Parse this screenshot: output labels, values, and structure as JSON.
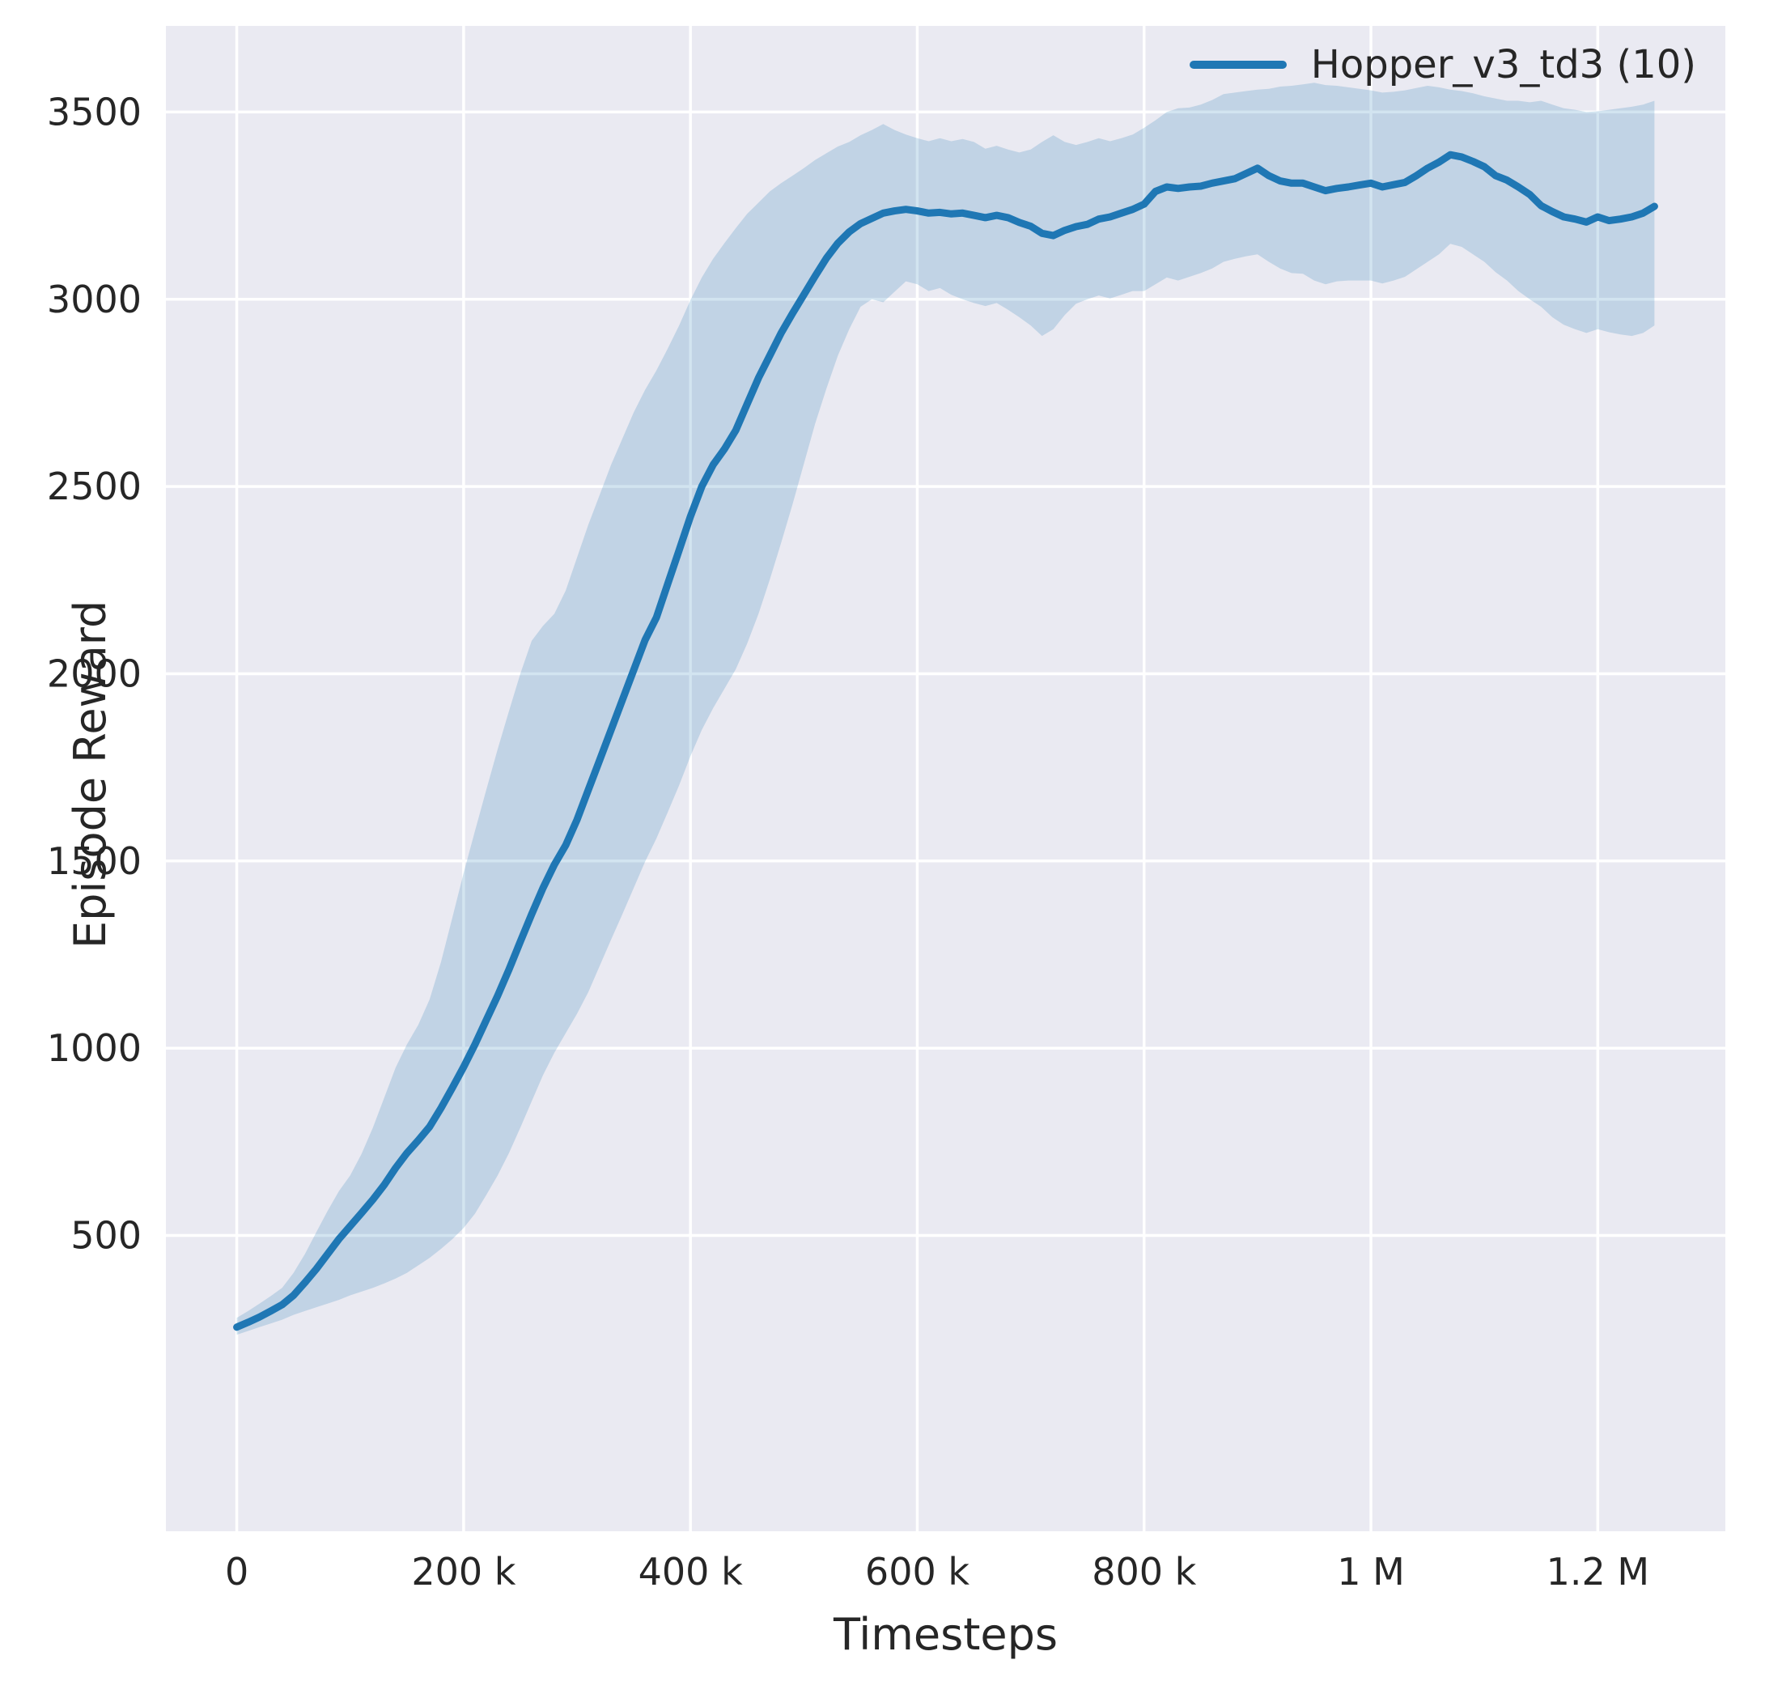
{
  "chart_data": {
    "type": "line",
    "title": "",
    "xlabel": "Timesteps",
    "ylabel": "Episode Reward",
    "legend_position": "upper right",
    "grid": true,
    "xlim": [
      -62500,
      1312500
    ],
    "ylim": [
      -290,
      3730
    ],
    "band_alpha": 0.2,
    "colors": {
      "plot_background": "#eaeaf2",
      "grid": "#ffffff",
      "text": "#262626",
      "line": "#1f77b4"
    },
    "x_ticks": [
      {
        "value": 0,
        "label": "0"
      },
      {
        "value": 200000,
        "label": "200 k"
      },
      {
        "value": 400000,
        "label": "400 k"
      },
      {
        "value": 600000,
        "label": "600 k"
      },
      {
        "value": 800000,
        "label": "800 k"
      },
      {
        "value": 1000000,
        "label": "1 M"
      },
      {
        "value": 1200000,
        "label": "1.2 M"
      }
    ],
    "y_ticks": [
      {
        "value": 500,
        "label": "500"
      },
      {
        "value": 1000,
        "label": "1000"
      },
      {
        "value": 1500,
        "label": "1500"
      },
      {
        "value": 2000,
        "label": "2000"
      },
      {
        "value": 2500,
        "label": "2500"
      },
      {
        "value": 3000,
        "label": "3000"
      },
      {
        "value": 3500,
        "label": "3500"
      }
    ],
    "series": [
      {
        "name": "Hopper_v3_td3 (10)",
        "color": "#1f77b4",
        "points_format": [
          "timesteps",
          "mean_reward",
          "band_lower",
          "band_upper"
        ],
        "points": [
          [
            0,
            255,
            235,
            280
          ],
          [
            10000,
            268,
            245,
            298
          ],
          [
            20000,
            282,
            255,
            318
          ],
          [
            30000,
            298,
            265,
            338
          ],
          [
            40000,
            315,
            275,
            360
          ],
          [
            50000,
            340,
            288,
            400
          ],
          [
            60000,
            374,
            298,
            450
          ],
          [
            70000,
            410,
            308,
            508
          ],
          [
            80000,
            450,
            318,
            565
          ],
          [
            90000,
            490,
            328,
            618
          ],
          [
            100000,
            525,
            340,
            660
          ],
          [
            110000,
            560,
            350,
            718
          ],
          [
            120000,
            596,
            360,
            788
          ],
          [
            130000,
            635,
            372,
            868
          ],
          [
            140000,
            680,
            385,
            948
          ],
          [
            150000,
            720,
            400,
            1010
          ],
          [
            160000,
            754,
            420,
            1062
          ],
          [
            170000,
            790,
            440,
            1130
          ],
          [
            180000,
            840,
            464,
            1230
          ],
          [
            190000,
            894,
            490,
            1348
          ],
          [
            200000,
            950,
            520,
            1468
          ],
          [
            210000,
            1010,
            558,
            1580
          ],
          [
            220000,
            1075,
            608,
            1690
          ],
          [
            230000,
            1140,
            660,
            1798
          ],
          [
            240000,
            1210,
            720,
            1900
          ],
          [
            250000,
            1285,
            788,
            2000
          ],
          [
            260000,
            1358,
            858,
            2088
          ],
          [
            270000,
            1428,
            928,
            2128
          ],
          [
            280000,
            1490,
            988,
            2160
          ],
          [
            290000,
            1542,
            1040,
            2222
          ],
          [
            300000,
            1610,
            1092,
            2310
          ],
          [
            310000,
            1690,
            1150,
            2398
          ],
          [
            320000,
            1770,
            1220,
            2478
          ],
          [
            330000,
            1850,
            1290,
            2558
          ],
          [
            340000,
            1930,
            1358,
            2628
          ],
          [
            350000,
            2010,
            1428,
            2698
          ],
          [
            360000,
            2090,
            1498,
            2758
          ],
          [
            370000,
            2150,
            1560,
            2810
          ],
          [
            380000,
            2240,
            1630,
            2868
          ],
          [
            390000,
            2330,
            1702,
            2930
          ],
          [
            400000,
            2420,
            1780,
            2998
          ],
          [
            410000,
            2500,
            1850,
            3058
          ],
          [
            420000,
            2558,
            1908,
            3108
          ],
          [
            430000,
            2600,
            1960,
            3150
          ],
          [
            440000,
            2650,
            2012,
            3190
          ],
          [
            450000,
            2720,
            2080,
            3228
          ],
          [
            460000,
            2790,
            2160,
            3258
          ],
          [
            470000,
            2850,
            2252,
            3288
          ],
          [
            480000,
            2910,
            2350,
            3310
          ],
          [
            490000,
            2962,
            2452,
            3330
          ],
          [
            500000,
            3012,
            2560,
            3350
          ],
          [
            510000,
            3062,
            2668,
            3372
          ],
          [
            520000,
            3110,
            2762,
            3390
          ],
          [
            530000,
            3150,
            2850,
            3408
          ],
          [
            540000,
            3180,
            2920,
            3420
          ],
          [
            550000,
            3202,
            2980,
            3438
          ],
          [
            560000,
            3216,
            3000,
            3452
          ],
          [
            570000,
            3230,
            2992,
            3468
          ],
          [
            580000,
            3236,
            3020,
            3452
          ],
          [
            590000,
            3240,
            3048,
            3440
          ],
          [
            600000,
            3236,
            3040,
            3430
          ],
          [
            610000,
            3230,
            3022,
            3422
          ],
          [
            620000,
            3232,
            3030,
            3430
          ],
          [
            630000,
            3228,
            3012,
            3422
          ],
          [
            640000,
            3230,
            3000,
            3428
          ],
          [
            650000,
            3224,
            2990,
            3420
          ],
          [
            660000,
            3218,
            2982,
            3402
          ],
          [
            670000,
            3224,
            2990,
            3410
          ],
          [
            680000,
            3218,
            2972,
            3400
          ],
          [
            690000,
            3205,
            2952,
            3392
          ],
          [
            700000,
            3195,
            2930,
            3400
          ],
          [
            710000,
            3176,
            2902,
            3420
          ],
          [
            720000,
            3170,
            2920,
            3438
          ],
          [
            730000,
            3184,
            2958,
            3420
          ],
          [
            740000,
            3194,
            2988,
            3412
          ],
          [
            750000,
            3200,
            3000,
            3420
          ],
          [
            760000,
            3214,
            3010,
            3430
          ],
          [
            770000,
            3220,
            3002,
            3422
          ],
          [
            780000,
            3230,
            3012,
            3430
          ],
          [
            790000,
            3240,
            3022,
            3440
          ],
          [
            800000,
            3254,
            3022,
            3458
          ],
          [
            810000,
            3288,
            3040,
            3478
          ],
          [
            820000,
            3300,
            3058,
            3500
          ],
          [
            830000,
            3296,
            3050,
            3510
          ],
          [
            840000,
            3300,
            3060,
            3512
          ],
          [
            850000,
            3302,
            3070,
            3520
          ],
          [
            860000,
            3310,
            3082,
            3532
          ],
          [
            870000,
            3316,
            3100,
            3548
          ],
          [
            880000,
            3322,
            3108,
            3552
          ],
          [
            890000,
            3336,
            3115,
            3556
          ],
          [
            900000,
            3350,
            3120,
            3560
          ],
          [
            910000,
            3330,
            3100,
            3562
          ],
          [
            920000,
            3316,
            3082,
            3568
          ],
          [
            930000,
            3310,
            3070,
            3570
          ],
          [
            940000,
            3310,
            3068,
            3574
          ],
          [
            950000,
            3300,
            3050,
            3578
          ],
          [
            960000,
            3290,
            3040,
            3572
          ],
          [
            970000,
            3296,
            3048,
            3570
          ],
          [
            980000,
            3300,
            3050,
            3566
          ],
          [
            990000,
            3305,
            3050,
            3562
          ],
          [
            1000000,
            3310,
            3050,
            3558
          ],
          [
            1010000,
            3300,
            3042,
            3552
          ],
          [
            1020000,
            3306,
            3050,
            3554
          ],
          [
            1030000,
            3312,
            3060,
            3558
          ],
          [
            1040000,
            3330,
            3080,
            3564
          ],
          [
            1050000,
            3350,
            3100,
            3570
          ],
          [
            1060000,
            3366,
            3120,
            3566
          ],
          [
            1070000,
            3386,
            3148,
            3560
          ],
          [
            1080000,
            3380,
            3140,
            3556
          ],
          [
            1090000,
            3368,
            3120,
            3550
          ],
          [
            1100000,
            3354,
            3100,
            3542
          ],
          [
            1110000,
            3330,
            3072,
            3536
          ],
          [
            1120000,
            3318,
            3050,
            3530
          ],
          [
            1130000,
            3300,
            3022,
            3530
          ],
          [
            1140000,
            3280,
            3000,
            3526
          ],
          [
            1150000,
            3250,
            2980,
            3530
          ],
          [
            1160000,
            3234,
            2952,
            3520
          ],
          [
            1170000,
            3220,
            2932,
            3510
          ],
          [
            1180000,
            3214,
            2920,
            3506
          ],
          [
            1190000,
            3206,
            2910,
            3500
          ],
          [
            1200000,
            3220,
            2920,
            3502
          ],
          [
            1210000,
            3210,
            2912,
            3506
          ],
          [
            1220000,
            3214,
            2906,
            3510
          ],
          [
            1230000,
            3220,
            2902,
            3514
          ],
          [
            1240000,
            3230,
            2910,
            3520
          ],
          [
            1250000,
            3248,
            2930,
            3530
          ]
        ]
      }
    ]
  }
}
